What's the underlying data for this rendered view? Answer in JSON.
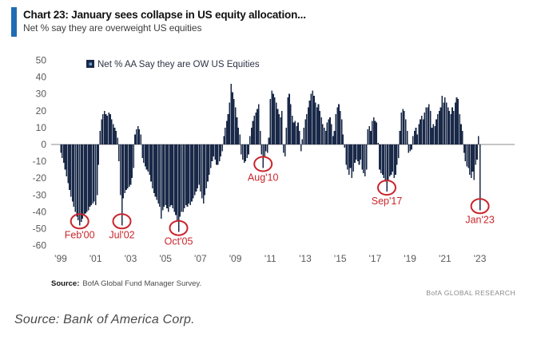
{
  "header": {
    "title": "Chart 23: January sees collapse in US equity allocation...",
    "subtitle": "Net % say they are overweight US equities"
  },
  "footer": {
    "source_label": "Source:",
    "source_text": "BofA Global Fund Manager Survey.",
    "brand": "BofA GLOBAL RESEARCH"
  },
  "caption": "Source: Bank of America Corp.",
  "colors": {
    "bar": "#1a2948",
    "accent": "#1f6cb4",
    "annotation": "#c9252b",
    "axis_text": "#595959",
    "zero_line": "#8c8c8c",
    "legend_text": "#2b3445",
    "legend_dot": "#6b9fd4"
  },
  "chart_data": {
    "type": "bar",
    "title": "Chart 23: January sees collapse in US equity allocation...",
    "subtitle": "Net % say they are overweight US equities",
    "legend_label": "Net % AA Say they are OW US Equities",
    "unit": "%",
    "start_month": "1999-01",
    "end_month": "2023-01",
    "frequency": "monthly",
    "ylim": [
      -60,
      50
    ],
    "ytick_step": 10,
    "grid": false,
    "legend_position": "top-left-inside",
    "xtick_labels": [
      "'99",
      "'01",
      "'03",
      "'05",
      "'07",
      "'09",
      "'11",
      "'13",
      "'15",
      "'17",
      "'19",
      "'21",
      "'23"
    ],
    "values": [
      -5,
      -8,
      -11,
      -15,
      -19,
      -23,
      -27,
      -31,
      -34,
      -37,
      -40,
      -43,
      -45,
      -48,
      -46,
      -44,
      -42,
      -41,
      -40,
      -39,
      -37,
      -36,
      -35,
      -34,
      -36,
      -30,
      -12,
      8,
      15,
      18,
      20,
      18,
      17,
      19,
      18,
      15,
      12,
      10,
      8,
      4,
      -10,
      -30,
      -48,
      -32,
      -29,
      -27,
      -26,
      -25,
      -24,
      -20,
      -14,
      6,
      9,
      11,
      9,
      6,
      -8,
      -11,
      -13,
      -15,
      -16,
      -18,
      -22,
      -26,
      -29,
      -31,
      -33,
      -35,
      -37,
      -44,
      -39,
      -37,
      -36,
      -38,
      -40,
      -37,
      -36,
      -38,
      -40,
      -42,
      -45,
      -52,
      -43,
      -40,
      -40,
      -38,
      -36,
      -37,
      -35,
      -36,
      -34,
      -32,
      -30,
      -28,
      -26,
      -24,
      -28,
      -32,
      -35,
      -30,
      -26,
      -22,
      -18,
      -14,
      -10,
      -7,
      -9,
      -12,
      -12,
      -10,
      -7,
      -4,
      5,
      10,
      14,
      18,
      25,
      36,
      31,
      27,
      22,
      16,
      10,
      6,
      -6,
      -9,
      -11,
      -10,
      -8,
      -6,
      5,
      10,
      14,
      17,
      19,
      21,
      24,
      8,
      -6,
      -14,
      -7,
      -4,
      -5,
      4,
      27,
      32,
      30,
      28,
      25,
      21,
      18,
      16,
      20,
      -5,
      -7,
      10,
      28,
      30,
      24,
      17,
      13,
      14,
      11,
      13,
      8,
      -4,
      3,
      10,
      15,
      18,
      22,
      26,
      30,
      32,
      29,
      25,
      22,
      24,
      20,
      16,
      12,
      10,
      8,
      13,
      15,
      16,
      12,
      5,
      8,
      18,
      22,
      24,
      20,
      15,
      6,
      -2,
      -12,
      -15,
      -18,
      -14,
      -20,
      -16,
      -11,
      -9,
      -10,
      -12,
      -9,
      -15,
      -17,
      -19,
      -15,
      9,
      11,
      8,
      14,
      16,
      14,
      13,
      1,
      -15,
      -17,
      -18,
      -20,
      -22,
      -28,
      -21,
      -19,
      -18,
      -16,
      -20,
      -18,
      -12,
      -8,
      8,
      19,
      21,
      20,
      15,
      8,
      -5,
      -4,
      -3,
      5,
      8,
      10,
      6,
      12,
      15,
      17,
      15,
      19,
      22,
      22,
      24,
      20,
      10,
      12,
      11,
      15,
      18,
      20,
      22,
      29,
      25,
      28,
      25,
      22,
      20,
      18,
      22,
      20,
      25,
      28,
      27,
      18,
      12,
      8,
      -5,
      -10,
      -13,
      -14,
      -18,
      -20,
      -16,
      -21,
      -12,
      -9,
      5,
      -39
    ],
    "annotations": [
      {
        "label": "Feb'00",
        "month": "2000-02",
        "value": -48
      },
      {
        "label": "Jul'02",
        "month": "2002-07",
        "value": -48
      },
      {
        "label": "Oct'05",
        "month": "2005-10",
        "value": -52
      },
      {
        "label": "Aug'10",
        "month": "2010-08",
        "value": -14
      },
      {
        "label": "Sep'17",
        "month": "2017-09",
        "value": -28
      },
      {
        "label": "Jan'23",
        "month": "2023-01",
        "value": -39
      }
    ]
  }
}
